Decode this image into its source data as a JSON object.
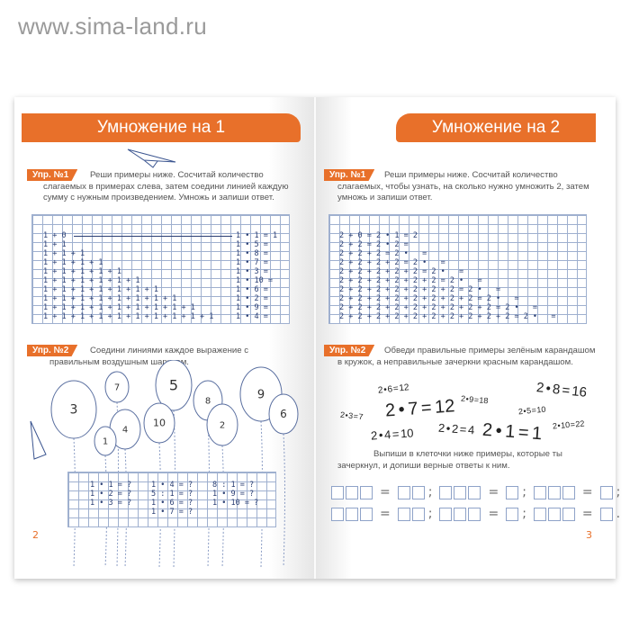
{
  "watermark": "www.sima-land.ru",
  "left": {
    "title": "Умножение на 1",
    "ex1": {
      "tag": "Упр. №1",
      "text": "Реши примеры ниже. Сосчитай количество слагаемых в примерах слева, затем соедини линией каждую сумму с нужным произведением. Умножь и запиши ответ.",
      "sums": [
        "1 + 0",
        "1 + 1",
        "1 + 1 + 1",
        "1 + 1 + 1 + 1",
        "1 + 1 + 1 + 1 + 1",
        "1 + 1 + 1 + 1 + 1 + 1",
        "1 + 1 + 1 + 1 + 1 + 1 + 1",
        "1 + 1 + 1 + 1 + 1 + 1 + 1 + 1",
        "1 + 1 + 1 + 1 + 1 + 1 + 1 + 1 + 1",
        "1 + 1 + 1 + 1 + 1 + 1 + 1 + 1 + 1 + 1"
      ],
      "products": [
        "1 • 1 = 1",
        "1 • 5 =",
        "1 • 8 =",
        "1 • 7 =",
        "1 • 3 =",
        "1 • 10 =",
        "1 • 6 =",
        "1 • 2 =",
        "1 • 9 =",
        "1 • 4 ="
      ]
    },
    "ex2": {
      "tag": "Упр. №2",
      "text": "Соедини линиями каждое выражение с правильным воздушным шариком.",
      "balloons": [
        "3",
        "7",
        "5",
        "8",
        "9",
        "6",
        "10",
        "4",
        "1",
        "2"
      ],
      "col1": [
        "1 • 1 = ?",
        "1 • 2 = ?",
        "1 • 3 = ?"
      ],
      "col2": [
        "1 • 4 = ?",
        "5 : 1 = ?",
        "1 • 6 = ?",
        "1 • 7 = ?"
      ],
      "col3": [
        "8 : 1 = ?",
        "1 • 9 = ?",
        "1 • 10 = ?"
      ]
    },
    "page_number": "2"
  },
  "right": {
    "title": "Умножение на 2",
    "ex1": {
      "tag": "Упр. №1",
      "text": "Реши примеры ниже. Сосчитай количество слагаемых, чтобы узнать, на сколько нужно умножить 2, затем умножь и запиши ответ.",
      "rows": [
        "2 + 0 = 2 • 1 = 2",
        "2 + 2 = 2 • 2 =",
        "2 + 2 + 2 = 2 •   =",
        "2 + 2 + 2 + 2 = 2 •   =",
        "2 + 2 + 2 + 2 + 2 = 2 •   =",
        "2 + 2 + 2 + 2 + 2 + 2 = 2 •   =",
        "2 + 2 + 2 + 2 + 2 + 2 + 2 = 2 •   =",
        "2 + 2 + 2 + 2 + 2 + 2 + 2 + 2 = 2 •   =",
        "2 + 2 + 2 + 2 + 2 + 2 + 2 + 2 + 2 = 2 •   =",
        "2 + 2 + 2 + 2 + 2 + 2 + 2 + 2 + 2 + 2 = 2 •   ="
      ]
    },
    "ex2": {
      "tag": "Упр. №2",
      "text": "Обведи правильные примеры зелёным карандашом в кружок, а неправильные зачеркни красным карандашом.",
      "equations": [
        "2 • 6 = 12",
        "2 • 7 = 12",
        "2 • 9 = 18",
        "2 • 8 = 16",
        "2 • 3 = 7",
        "2 • 5 = 10",
        "2 • 4 = 10",
        "2 • 2 = 4",
        "2 • 1 = 1",
        "2 • 10 = 22"
      ],
      "text2": "Выпиши в клеточки ниже примеры, которые ты зачеркнул, и допиши верные ответы к ним.",
      "eq_sign": "=",
      "sep": ";",
      "end": "."
    },
    "page_number": "3"
  },
  "colors": {
    "accent": "#e8702a",
    "grid": "#9fb0cf",
    "ink": "#2b3f73"
  }
}
